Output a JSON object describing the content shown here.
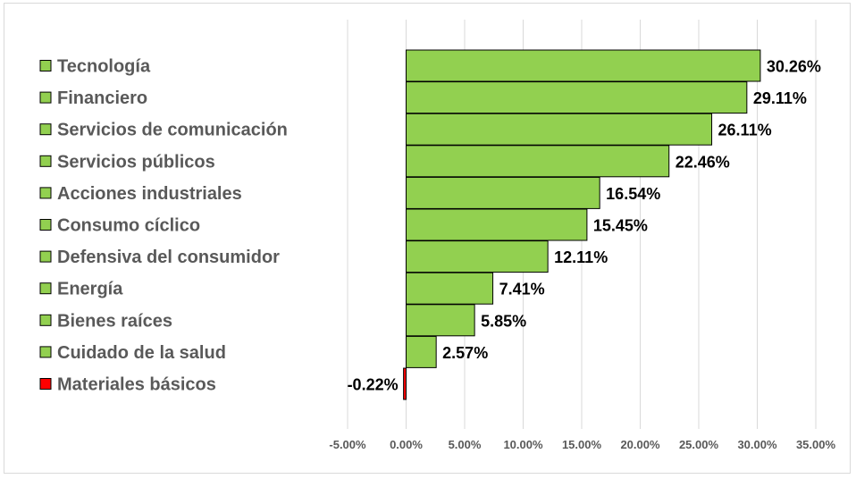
{
  "chart_data": {
    "type": "bar",
    "orientation": "horizontal",
    "categories": [
      "Tecnología",
      "Financiero",
      "Servicios de comunicación",
      "Servicios públicos",
      "Acciones industriales",
      "Consumo cíclico",
      "Defensiva del consumidor",
      "Energía",
      "Bienes raíces",
      "Cuidado de la salud",
      "Materiales básicos"
    ],
    "values": [
      30.26,
      29.11,
      26.11,
      22.46,
      16.54,
      15.45,
      12.11,
      7.41,
      5.85,
      2.57,
      -0.22
    ],
    "data_labels": [
      "30.26%",
      "29.11%",
      "26.11%",
      "22.46%",
      "16.54%",
      "15.45%",
      "12.11%",
      "7.41%",
      "5.85%",
      "2.57%",
      "-0.22%"
    ],
    "xlim": [
      -5,
      35
    ],
    "xticks": [
      -5,
      0,
      5,
      10,
      15,
      20,
      25,
      30,
      35
    ],
    "xtick_labels": [
      "-5.00%",
      "0.00%",
      "5.00%",
      "10.00%",
      "15.00%",
      "20.00%",
      "25.00%",
      "30.00%",
      "35.00%"
    ],
    "grid": "vertical",
    "legend_placement": "left",
    "title": "",
    "xlabel": "",
    "ylabel": "",
    "colors": {
      "positive": "#92d050",
      "negative": "#ff0000",
      "bar_border": "#000000",
      "grid": "#d9d9d9"
    }
  }
}
